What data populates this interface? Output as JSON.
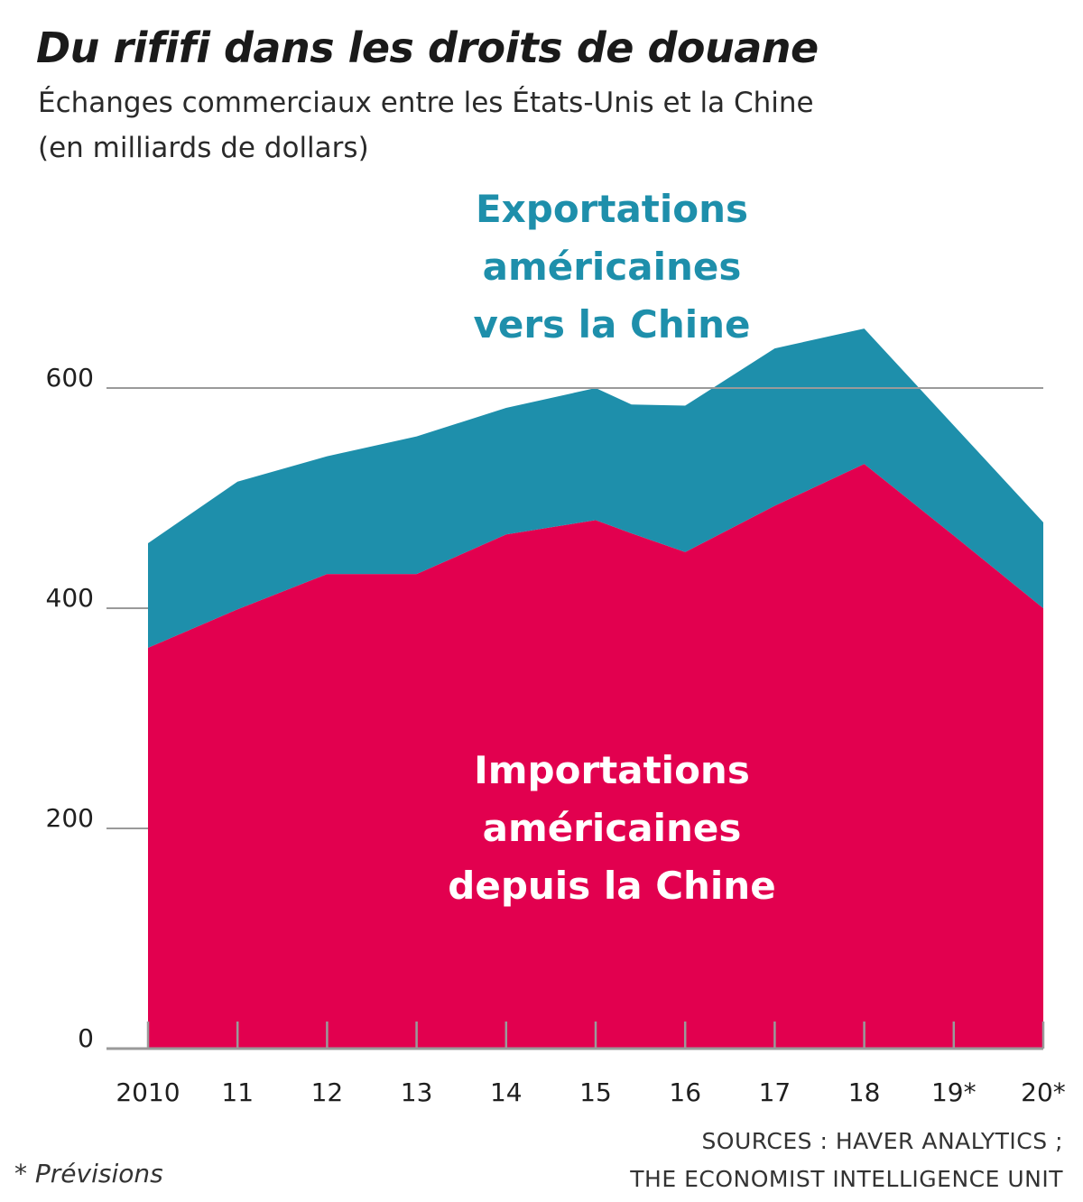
{
  "title": "Du rififi dans les droits de douane",
  "subtitle_line1": "Échanges commerciaux entre les États-Unis et la Chine",
  "subtitle_line2": "(en milliards de dollars)",
  "footnote": "* Prévisions",
  "sources_line1": "SOURCES : HAVER ANALYTICS ;",
  "sources_line2": "THE ECONOMIST INTELLIGENCE UNIT",
  "colors": {
    "imports": "#e2004f",
    "exports": "#1e8fab",
    "axis": "#9a9a9a",
    "text": "#1f1f1f",
    "label_exports": "#1e8fab",
    "label_imports": "#ffffff"
  },
  "chart_data": {
    "type": "area",
    "stacked": true,
    "x": [
      2010,
      2011,
      2012,
      2013,
      2014,
      2015,
      2016,
      2017,
      2018,
      2019,
      2020
    ],
    "x_tick_labels": [
      "2010",
      "11",
      "12",
      "13",
      "14",
      "15",
      "16",
      "17",
      "18",
      "19*",
      "20*"
    ],
    "ylim": [
      0,
      600
    ],
    "y_ticks": [
      0,
      200,
      400,
      600
    ],
    "y_tick_labels": [
      "0",
      "200",
      "400",
      "600"
    ],
    "grid": "600 only",
    "series": [
      {
        "name": "Importations américaines depuis la Chine",
        "label_lines": [
          "Importations",
          "américaines",
          "depuis la Chine"
        ],
        "x": [
          2010,
          2011,
          2012,
          2013,
          2014,
          2015,
          2015.4,
          2016,
          2017,
          2018,
          2019,
          2020
        ],
        "values": [
          364,
          399,
          431,
          431,
          467,
          480,
          468,
          451,
          493,
          531,
          466,
          400
        ]
      },
      {
        "name": "Exportations américaines vers la Chine",
        "label_lines": [
          "Exportations",
          "américaines",
          "vers la Chine"
        ],
        "x": [
          2010,
          2011,
          2012,
          2013,
          2014,
          2015,
          2015.4,
          2016,
          2017,
          2018,
          2019,
          2020
        ],
        "values": [
          95,
          116,
          107,
          125,
          115,
          120,
          117,
          133,
          143,
          123,
          100,
          78
        ]
      }
    ]
  }
}
